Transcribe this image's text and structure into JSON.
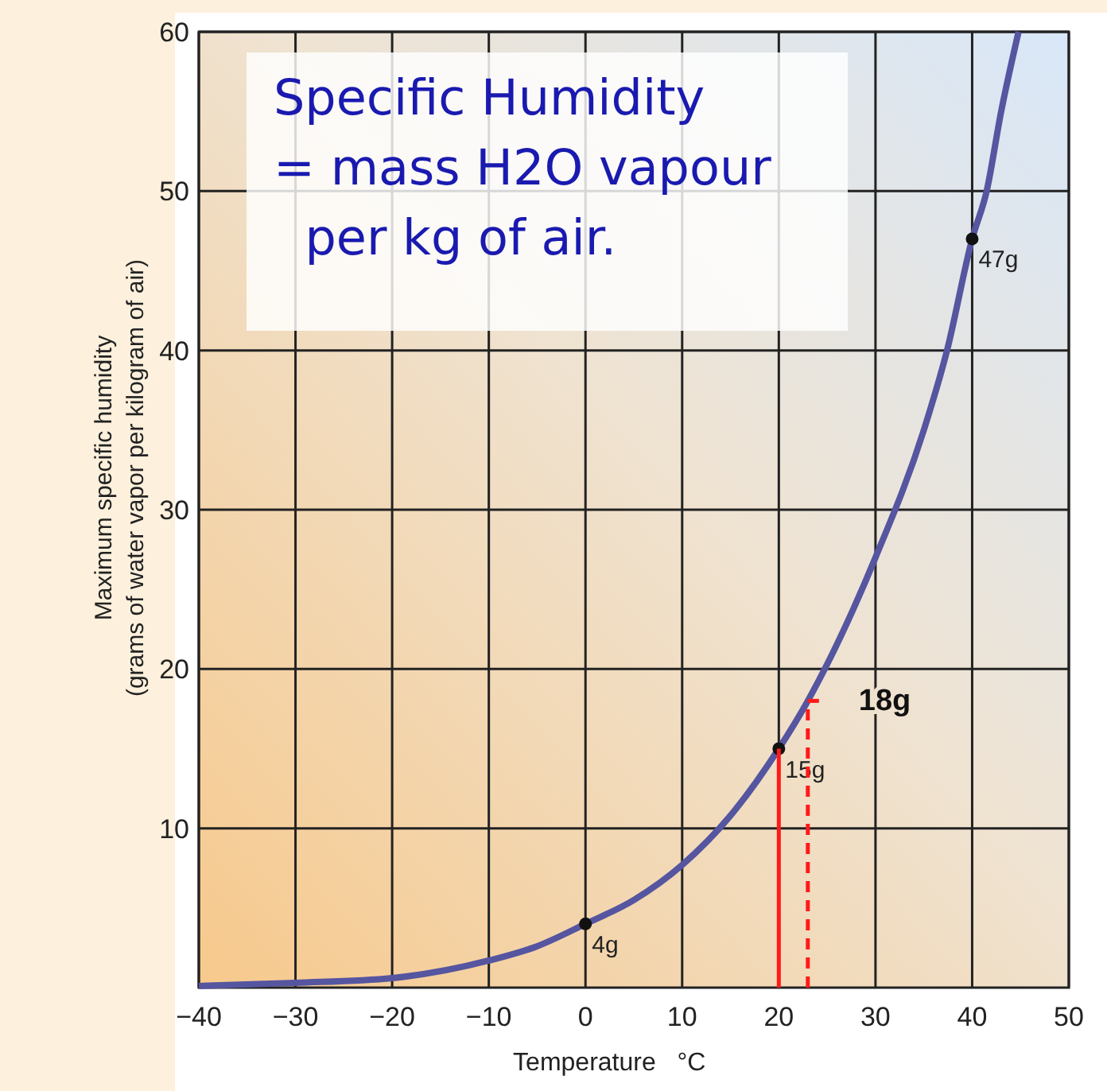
{
  "chart_data": {
    "type": "line",
    "xlabel": "Temperature   °C",
    "ylabel": "Maximum specific humidity\n(grams of water vapor per kilogram of air)",
    "xlim": [
      -40,
      50
    ],
    "ylim": [
      0,
      60
    ],
    "xticks": [
      -40,
      -30,
      -20,
      -10,
      0,
      10,
      20,
      30,
      40,
      50
    ],
    "yticks": [
      10,
      20,
      30,
      40,
      50,
      60
    ],
    "grid": true,
    "series": [
      {
        "color": "#5555a0",
        "x": [
          -40,
          -30,
          -20,
          -10,
          -5,
          0,
          5,
          10,
          15,
          20,
          23,
          25,
          30,
          35,
          37.4,
          40,
          41.5,
          43,
          44.8
        ],
        "values": [
          0.1,
          0.3,
          0.6,
          1.7,
          2.6,
          4,
          5.5,
          7.7,
          10.8,
          15,
          18,
          20.3,
          27,
          35,
          40,
          47,
          50,
          55,
          60
        ]
      },
      {
        "type": "scatter",
        "color": "#111111",
        "marker": "circle",
        "x": [
          0,
          20,
          40
        ],
        "values": [
          4,
          15,
          47
        ],
        "value_labels": [
          "4g",
          "15g",
          "47g"
        ]
      },
      {
        "type": "line",
        "color": "#ff1a1a",
        "line_style": "solid",
        "x": [
          20,
          20
        ],
        "values": [
          0,
          15
        ]
      },
      {
        "type": "line",
        "color": "#ff1a1a",
        "line_style": "dashed",
        "x": [
          23,
          23
        ],
        "values": [
          0,
          18
        ]
      },
      {
        "type": "line",
        "color": "#ff1a1a",
        "line_style": "dashed",
        "x": [
          23,
          24.6
        ],
        "values": [
          18,
          18
        ]
      }
    ],
    "annotations": [
      "Specific Humidity\n= mass H2O vapour\n  per kg of air.",
      {
        "text": "18g",
        "x": 23,
        "y": 18
      }
    ]
  }
}
